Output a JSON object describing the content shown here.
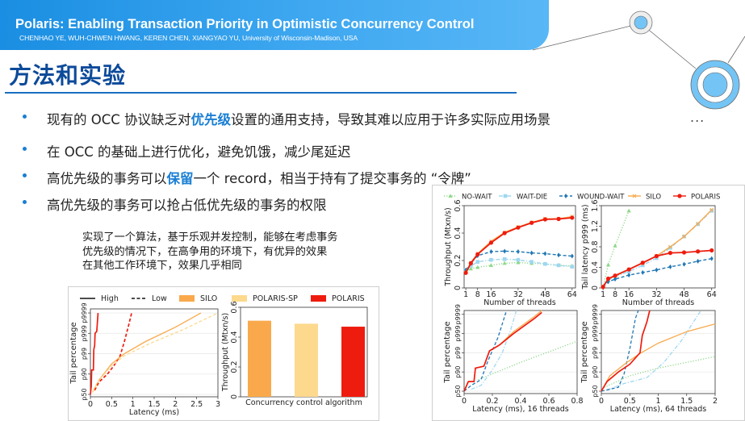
{
  "header": {
    "title": "Polaris: Enabling Transaction Priority in Optimistic Concurrency Control",
    "authors": "CHENHAO YE, WUH-CHWEN HWANG, KEREN CHEN, XIANGYAO YU, University of Wisconsin-Madison, USA"
  },
  "section": {
    "title": "方法和实验"
  },
  "bullets": [
    {
      "before": "现有的 OCC 协议缺乏对",
      "highlight": "优先级",
      "after": "设置的通用支持，导致其难以应用于许多实际应用场景"
    },
    {
      "before": "在 OCC 的基础上进行优化，避免饥饿，减少尾延迟",
      "highlight": "",
      "after": ""
    },
    {
      "before": "高优先级的事务可以",
      "highlight": "保留",
      "after": "一个 record，相当于持有了提交事务的 “令牌”"
    },
    {
      "before": "高优先级的事务可以抢占低优先级的事务的权限",
      "highlight": "",
      "after": ""
    }
  ],
  "ellipsis": "...",
  "note": [
    "实现了一个算法，基于乐观并发控制，能够在考虑事务",
    "优先级的情况下，在高争用的环境下，有优异的效果",
    "在其他工作环境下，效果几乎相同"
  ],
  "colors": {
    "accent": "#1a7fd4",
    "title": "#0c4a9a",
    "silo": "#f9a94b",
    "polaris_sp": "#fdd98d",
    "polaris": "#ee1c0e",
    "no_wait": "#8fd88a",
    "wait_die": "#9fd7ee",
    "wound_wait": "#1f77b4"
  },
  "chart_data": [
    {
      "id": "left-tail-latency",
      "type": "line",
      "legend": [
        {
          "label": "High",
          "style": "solid"
        },
        {
          "label": "Low",
          "style": "dashed"
        },
        {
          "label": "SILO",
          "color": "#f9a94b"
        }
      ],
      "xlabel": "Latency (ms)",
      "ylabel": "Tail percentage",
      "xticks": [
        "0",
        "0.5",
        "1",
        "1.5",
        "2",
        "2.5",
        "3"
      ],
      "yticks": [
        "p50",
        "p90",
        "p99",
        "p999",
        "p9999"
      ],
      "xlim": [
        0,
        3
      ],
      "series": [
        {
          "name": "POLARIS High",
          "style": "solid",
          "color": "#ee1c0e",
          "points": [
            [
              0.0,
              0
            ],
            [
              0.02,
              0.4
            ],
            [
              0.03,
              1.2
            ],
            [
              0.07,
              1.2
            ],
            [
              0.08,
              2.2
            ],
            [
              0.1,
              2.4
            ],
            [
              0.11,
              3.0
            ],
            [
              0.15,
              3.1
            ],
            [
              0.18,
              4
            ]
          ]
        },
        {
          "name": "POLARIS Low",
          "style": "dashed",
          "color": "#ee1c0e",
          "points": [
            [
              0.1,
              0.2
            ],
            [
              0.2,
              0.6
            ],
            [
              0.4,
              1.0
            ],
            [
              0.55,
              1.4
            ],
            [
              0.7,
              1.9
            ],
            [
              0.8,
              2.6
            ],
            [
              0.9,
              3.4
            ],
            [
              0.97,
              4
            ]
          ]
        },
        {
          "name": "SILO High",
          "style": "solid",
          "color": "#f9a94b",
          "points": [
            [
              0.05,
              0.1
            ],
            [
              0.2,
              0.7
            ],
            [
              0.5,
              1.5
            ],
            [
              0.8,
              2.0
            ],
            [
              1.3,
              2.6
            ],
            [
              2.0,
              3.3
            ],
            [
              2.6,
              4
            ]
          ]
        },
        {
          "name": "SILO Low",
          "style": "dashed",
          "color": "#fdd98d",
          "points": [
            [
              0.05,
              0.1
            ],
            [
              0.2,
              0.7
            ],
            [
              0.5,
              1.4
            ],
            [
              0.8,
              1.9
            ],
            [
              1.4,
              2.5
            ],
            [
              2.2,
              3.2
            ],
            [
              3.0,
              4
            ]
          ]
        }
      ]
    },
    {
      "id": "throughput-bars",
      "type": "bar",
      "legend": [
        {
          "label": "POLARIS-SP",
          "color": "#fdd98d"
        },
        {
          "label": "POLARIS",
          "color": "#ee1c0e"
        }
      ],
      "categories": [
        "SILO",
        "POLARIS-SP",
        "POLARIS"
      ],
      "values": [
        0.51,
        0.49,
        0.47
      ],
      "xlabel": "Concurrency control algorithm",
      "ylabel": "Throughput (Mtxn/s)",
      "yticks": [
        "0",
        "0.2",
        "0.4",
        "0.6"
      ],
      "ylim": [
        0,
        0.6
      ]
    },
    {
      "id": "throughput-vs-threads",
      "type": "line",
      "legend": [
        {
          "label": "NO-WAIT",
          "color": "#8fd88a",
          "style": "dotted",
          "marker": "triangle"
        },
        {
          "label": "WAIT-DIE",
          "color": "#9fd7ee",
          "style": "dashdot",
          "marker": "square"
        },
        {
          "label": "WOUND-WAIT",
          "color": "#1f77b4",
          "style": "dashed",
          "marker": "diamond"
        },
        {
          "label": "SILO",
          "color": "#f9a94b",
          "style": "solid",
          "marker": "x"
        },
        {
          "label": "POLARIS",
          "color": "#ee1c0e",
          "style": "solid",
          "marker": "circle"
        }
      ],
      "xlabel": "Number of threads",
      "ylabel": "Throughput (Mtxn/s)",
      "xticks": [
        "1",
        "8",
        "16",
        "32",
        "48",
        "64"
      ],
      "yticks": [
        "0",
        "0.2",
        "0.4",
        "0.6"
      ],
      "xlim": [
        0,
        66
      ],
      "ylim": [
        0,
        0.6
      ],
      "x": [
        1,
        4,
        8,
        16,
        24,
        32,
        40,
        48,
        56,
        64
      ],
      "series": [
        {
          "name": "NO-WAIT",
          "values": [
            0.13,
            0.14,
            0.15,
            0.165,
            0.18,
            0.185,
            0.18,
            0.175,
            0.165,
            0.16
          ]
        },
        {
          "name": "WAIT-DIE",
          "values": [
            0.13,
            0.16,
            0.19,
            0.205,
            0.21,
            0.205,
            0.19,
            0.175,
            0.165,
            0.155
          ]
        },
        {
          "name": "WOUND-WAIT",
          "values": [
            0.13,
            0.18,
            0.235,
            0.265,
            0.268,
            0.265,
            0.255,
            0.25,
            0.24,
            0.232
          ]
        },
        {
          "name": "SILO",
          "values": [
            0.115,
            0.185,
            0.25,
            0.34,
            0.405,
            0.445,
            0.478,
            0.505,
            0.505,
            0.52
          ]
        },
        {
          "name": "POLARIS",
          "values": [
            0.11,
            0.18,
            0.245,
            0.33,
            0.4,
            0.44,
            0.475,
            0.5,
            0.503,
            0.512
          ]
        }
      ]
    },
    {
      "id": "tail-latency-vs-threads",
      "type": "line",
      "xlabel": "Number of threads",
      "ylabel": "Tail latency p999 (ms)",
      "xticks": [
        "1",
        "8",
        "16",
        "32",
        "48",
        "64"
      ],
      "yticks": [
        "0",
        "0.4",
        "0.8",
        "1.2",
        "1.6"
      ],
      "xlim": [
        0,
        66
      ],
      "ylim": [
        0,
        1.6
      ],
      "x": [
        1,
        4,
        8,
        16,
        24,
        32,
        40,
        48,
        56,
        64
      ],
      "series": [
        {
          "name": "NO-WAIT",
          "values": [
            0.02,
            0.45,
            0.82,
            1.5,
            null,
            null,
            null,
            null,
            null,
            null
          ]
        },
        {
          "name": "WAIT-DIE",
          "values": [
            0.02,
            0.15,
            0.22,
            0.32,
            0.44,
            0.58,
            0.78,
            1.0,
            1.24,
            1.5
          ]
        },
        {
          "name": "WOUND-WAIT",
          "values": [
            0.02,
            0.12,
            0.17,
            0.25,
            0.3,
            0.35,
            0.41,
            0.46,
            0.52,
            0.57
          ]
        },
        {
          "name": "SILO",
          "values": [
            0.02,
            0.17,
            0.23,
            0.36,
            0.48,
            0.62,
            0.8,
            1.0,
            1.25,
            1.52
          ]
        },
        {
          "name": "POLARIS",
          "values": [
            0.02,
            0.18,
            0.24,
            0.36,
            0.49,
            0.62,
            0.68,
            0.69,
            0.71,
            0.73
          ]
        }
      ]
    },
    {
      "id": "tail-cdf-16",
      "type": "line",
      "xlabel": "Latency (ms), 16 threads",
      "ylabel": "Tail percentage",
      "xticks": [
        "0",
        "0.2",
        "0.4",
        "0.6",
        "0.8"
      ],
      "yticks": [
        "p50",
        "p90",
        "p99",
        "p999",
        "p9999"
      ],
      "xlim": [
        0,
        0.8
      ],
      "series": [
        {
          "name": "NO-WAIT",
          "points": [
            [
              0.1,
              0.6
            ],
            [
              0.4,
              1.5
            ],
            [
              0.8,
              2.6
            ]
          ]
        },
        {
          "name": "WAIT-DIE",
          "points": [
            [
              0.05,
              0.1
            ],
            [
              0.12,
              0.3
            ],
            [
              0.2,
              1.1
            ],
            [
              0.27,
              2.0
            ],
            [
              0.33,
              3.2
            ],
            [
              0.37,
              4.2
            ]
          ]
        },
        {
          "name": "WOUND-WAIT",
          "points": [
            [
              0.0,
              0
            ],
            [
              0.05,
              0.3
            ],
            [
              0.12,
              0.6
            ],
            [
              0.17,
              1.6
            ],
            [
              0.24,
              2.8
            ],
            [
              0.3,
              4.2
            ]
          ]
        },
        {
          "name": "SILO",
          "points": [
            [
              0.0,
              0
            ],
            [
              0.03,
              0.5
            ],
            [
              0.07,
              0.5
            ],
            [
              0.08,
              1.2
            ],
            [
              0.14,
              1.3
            ],
            [
              0.18,
              2.1
            ],
            [
              0.25,
              2.4
            ],
            [
              0.35,
              3.1
            ],
            [
              0.5,
              3.9
            ],
            [
              0.55,
              4.2
            ]
          ]
        },
        {
          "name": "POLARIS",
          "points": [
            [
              0.0,
              0
            ],
            [
              0.03,
              0.5
            ],
            [
              0.07,
              0.5
            ],
            [
              0.08,
              1.2
            ],
            [
              0.14,
              1.3
            ],
            [
              0.18,
              2.1
            ],
            [
              0.25,
              2.4
            ],
            [
              0.35,
              3.0
            ],
            [
              0.5,
              3.8
            ],
            [
              0.55,
              4.1
            ]
          ]
        }
      ]
    },
    {
      "id": "tail-cdf-64",
      "type": "line",
      "xlabel": "Latency (ms), 64 threads",
      "ylabel": "Tail percentage",
      "xticks": [
        "0",
        "0.5",
        "1",
        "1.5",
        "2"
      ],
      "yticks": [
        "p50",
        "p90",
        "p99",
        "p999",
        "p9999"
      ],
      "xlim": [
        0,
        2
      ],
      "series": [
        {
          "name": "NO-WAIT",
          "points": [
            [
              0.05,
              0.2
            ],
            [
              0.5,
              0.8
            ],
            [
              1.0,
              1.2
            ],
            [
              2.0,
              1.8
            ]
          ]
        },
        {
          "name": "WAIT-DIE",
          "points": [
            [
              0.1,
              0.05
            ],
            [
              0.4,
              0.4
            ],
            [
              0.8,
              0.7
            ],
            [
              1.1,
              1.5
            ],
            [
              1.4,
              2.6
            ],
            [
              1.75,
              4.2
            ]
          ]
        },
        {
          "name": "WOUND-WAIT",
          "points": [
            [
              0.0,
              0
            ],
            [
              0.3,
              0.2
            ],
            [
              0.4,
              0.9
            ],
            [
              0.5,
              2.2
            ],
            [
              0.6,
              3.8
            ],
            [
              0.65,
              4.2
            ]
          ]
        },
        {
          "name": "SILO",
          "points": [
            [
              0.0,
              0
            ],
            [
              0.15,
              0.8
            ],
            [
              0.45,
              1.5
            ],
            [
              0.7,
              2.0
            ],
            [
              1.0,
              2.5
            ],
            [
              1.5,
              3.1
            ],
            [
              2.0,
              3.5
            ]
          ]
        },
        {
          "name": "POLARIS",
          "points": [
            [
              0.0,
              0
            ],
            [
              0.1,
              0.5
            ],
            [
              0.3,
              1.0
            ],
            [
              0.5,
              1.4
            ],
            [
              0.68,
              2.0
            ],
            [
              0.72,
              2.9
            ],
            [
              0.8,
              3.6
            ],
            [
              0.85,
              4.2
            ]
          ]
        }
      ]
    }
  ]
}
